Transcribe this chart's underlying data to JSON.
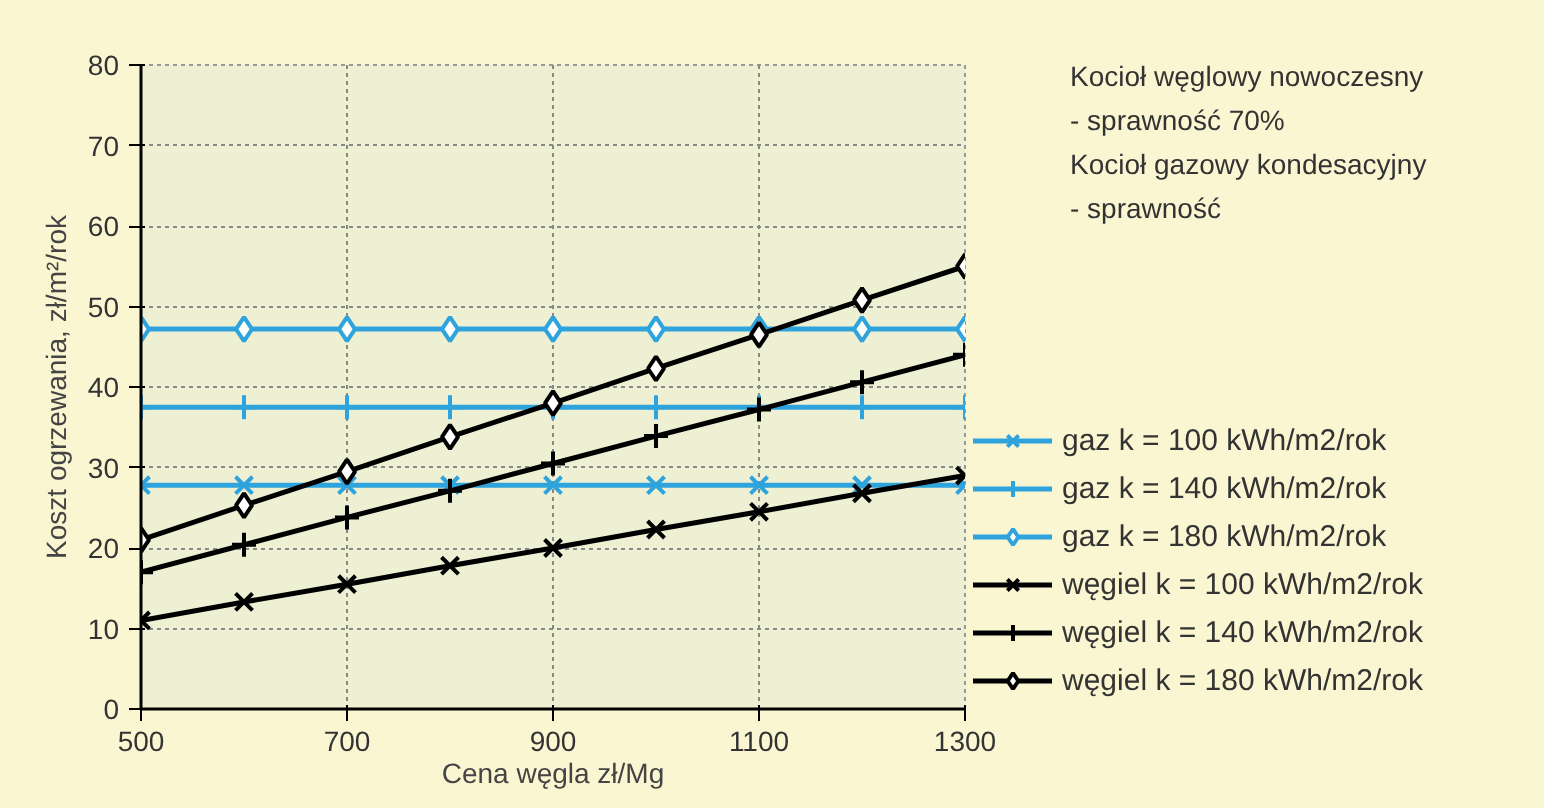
{
  "chart_data": {
    "type": "line",
    "xlabel": "Cena węgla zł/Mg",
    "ylabel": "Koszt ogrzewania, zł/m²/rok",
    "x": [
      500,
      600,
      700,
      800,
      900,
      1000,
      1100,
      1200,
      1300
    ],
    "xlim": [
      500,
      1300
    ],
    "xticks": [
      500,
      700,
      900,
      1100,
      1300
    ],
    "ylim": [
      0,
      80
    ],
    "yticks": [
      0,
      10,
      20,
      30,
      40,
      50,
      60,
      70,
      80
    ],
    "grid": true,
    "legend": "right",
    "line_style": "solid",
    "annotations": [
      "Kocioł węglowy nowoczesny - sprawność 70%",
      "Kocioł gazowy kondesacyjny - sprawność"
    ],
    "series": [
      {
        "name": "gaz k = 100 kWh/m2/rok",
        "color": "#2ea3dc",
        "marker": "x",
        "values": [
          27.8,
          27.8,
          27.8,
          27.8,
          27.8,
          27.8,
          27.8,
          27.8,
          27.8
        ]
      },
      {
        "name": "gaz k = 140 kWh/m2/rok",
        "color": "#2ea3dc",
        "marker": "cross",
        "values": [
          37.5,
          37.5,
          37.5,
          37.5,
          37.5,
          37.5,
          37.5,
          37.5,
          37.5
        ]
      },
      {
        "name": "gaz k = 180 kWh/m2/rok",
        "color": "#2ea3dc",
        "marker": "diamond",
        "values": [
          47.2,
          47.2,
          47.2,
          47.2,
          47.2,
          47.2,
          47.2,
          47.2,
          47.2
        ]
      },
      {
        "name": "węgiel k = 100 kWh/m2/rok",
        "color": "#000000",
        "marker": "x",
        "values": [
          11,
          13.3,
          15.5,
          17.8,
          20,
          22.3,
          24.5,
          26.8,
          29
        ]
      },
      {
        "name": "węgiel k = 140 kWh/m2/rok",
        "color": "#000000",
        "marker": "cross",
        "values": [
          17,
          20.4,
          23.8,
          27.1,
          30.5,
          33.9,
          37.2,
          40.6,
          44
        ]
      },
      {
        "name": "węgiel k = 180 kWh/m2/rok",
        "color": "#000000",
        "marker": "diamond",
        "values": [
          21,
          25.3,
          29.5,
          33.8,
          38,
          42.3,
          46.5,
          50.8,
          55
        ]
      }
    ]
  }
}
